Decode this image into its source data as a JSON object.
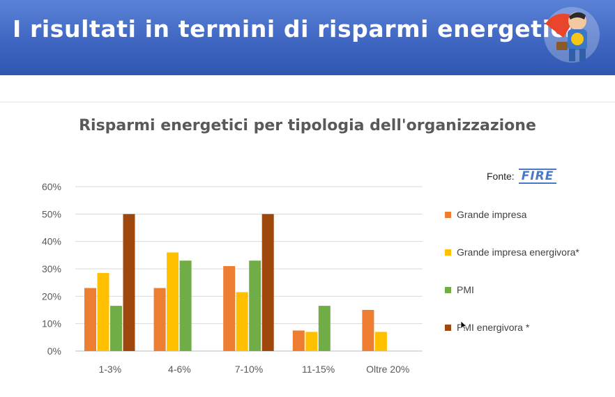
{
  "header": {
    "title": "I risultati in termini di risparmi energetici",
    "logo_icon": "superhero-mascot-icon"
  },
  "source": {
    "label": "Fonte:",
    "logo_text": "FIRE"
  },
  "chart_data": {
    "type": "bar",
    "title": "Risparmi energetici per tipologia dell'organizzazione",
    "xlabel": "",
    "ylabel": "",
    "ylim": [
      0,
      60
    ],
    "yticks": [
      "0%",
      "10%",
      "20%",
      "30%",
      "40%",
      "50%",
      "60%"
    ],
    "ytick_values": [
      0,
      10,
      20,
      30,
      40,
      50,
      60
    ],
    "grid": true,
    "legend_position": "right",
    "categories": [
      "1-3%",
      "4-6%",
      "7-10%",
      "11-15%",
      "Oltre 20%"
    ],
    "series": [
      {
        "name": "Grande impresa",
        "color": "#ed7d31",
        "values": [
          23,
          23,
          31,
          7.5,
          15
        ]
      },
      {
        "name": "Grande impresa energivora*",
        "color": "#ffc000",
        "values": [
          28.5,
          36,
          21.5,
          7,
          7
        ]
      },
      {
        "name": "PMI",
        "color": "#70ad47",
        "values": [
          16.5,
          33,
          33,
          16.5,
          0
        ]
      },
      {
        "name": "PMI energivora *",
        "color": "#9e480e",
        "values": [
          50,
          0,
          50,
          0,
          0
        ]
      }
    ]
  }
}
